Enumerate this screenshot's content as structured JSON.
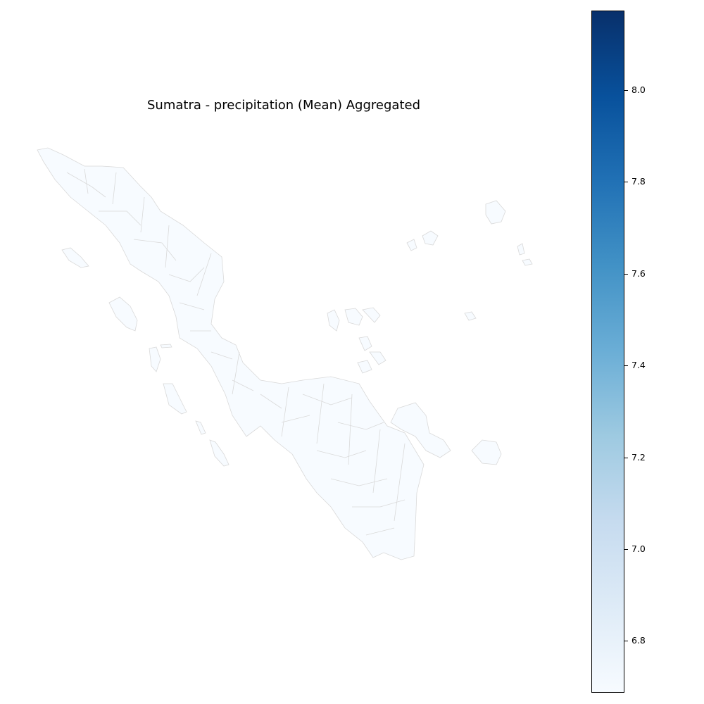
{
  "title": "Sumatra - precipitation (Mean) Aggregated",
  "fill_color": "#f7fbff",
  "border_color": "#d9d9d9",
  "colorbar": {
    "colormap": "Blues",
    "min": 6.68,
    "max": 8.17,
    "ticks": [
      "6.8",
      "7.0",
      "7.2",
      "7.4",
      "7.6",
      "7.8",
      "8.0"
    ]
  }
}
